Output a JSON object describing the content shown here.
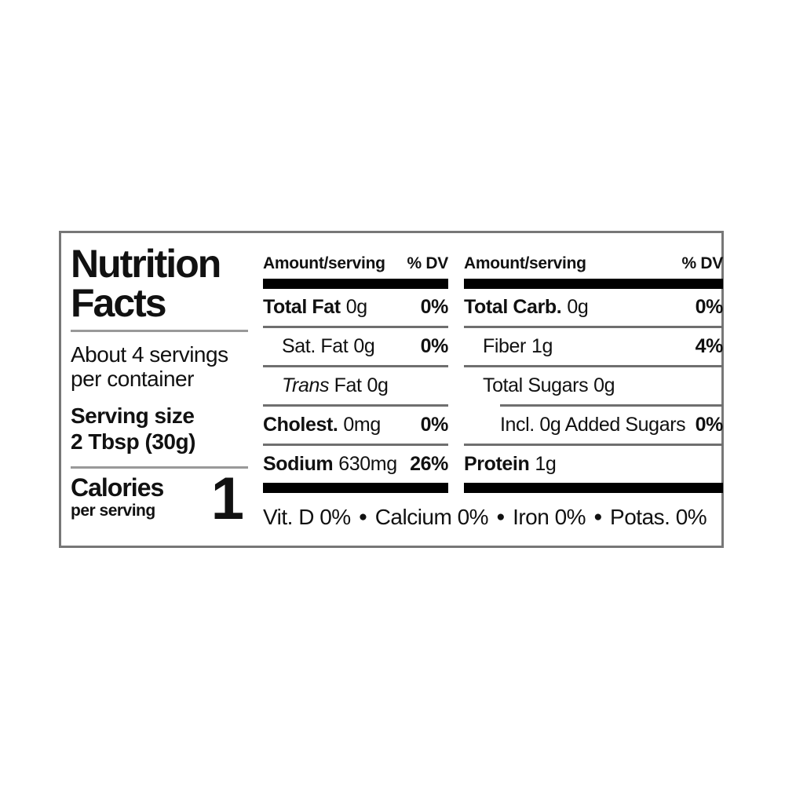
{
  "label": {
    "title_line1": "Nutrition",
    "title_line2": "Facts",
    "servings_line1": "About 4 servings",
    "servings_line2": "per container",
    "serving_size_label": "Serving size",
    "serving_size_value": "2 Tbsp (30g)",
    "calories_label": "Calories",
    "calories_sublabel": "per serving",
    "calories_value": "1",
    "columns": [
      {
        "header": {
          "amount_label": "Amount/serving",
          "dv_label": "% DV"
        },
        "rows": [
          {
            "name": "Total Fat",
            "amount": "0g",
            "dv": "0%"
          },
          {
            "name": "Sat. Fat",
            "amount": "0g",
            "dv": "0%"
          },
          {
            "name_italic": "Trans",
            "name_rest": "Fat",
            "amount": "0g",
            "dv": ""
          },
          {
            "name": "Cholest.",
            "amount": "0mg",
            "dv": "0%"
          },
          {
            "name": "Sodium",
            "amount": "630mg",
            "dv": "26%"
          }
        ]
      },
      {
        "header": {
          "amount_label": "Amount/serving",
          "dv_label": "% DV"
        },
        "rows": [
          {
            "name": "Total Carb.",
            "amount": "0g",
            "dv": "0%"
          },
          {
            "name": "Fiber",
            "amount": "1g",
            "dv": "4%"
          },
          {
            "name": "Total Sugars",
            "amount": "0g",
            "dv": ""
          },
          {
            "name": "Incl. 0g Added Sugars",
            "amount": "",
            "dv": "0%"
          },
          {
            "name": "Protein",
            "amount": "1g",
            "dv": ""
          }
        ]
      }
    ],
    "micronutrients": {
      "items": [
        "Vit. D 0%",
        "Calcium 0%",
        "Iron 0%",
        "Potas. 0%"
      ],
      "separator": "●"
    },
    "colors": {
      "text": "#111111",
      "thick_bar": "#000000",
      "thin_rule": "#6f6f6f",
      "left_rule": "#999999",
      "border": "#777777",
      "background": "#ffffff"
    }
  }
}
